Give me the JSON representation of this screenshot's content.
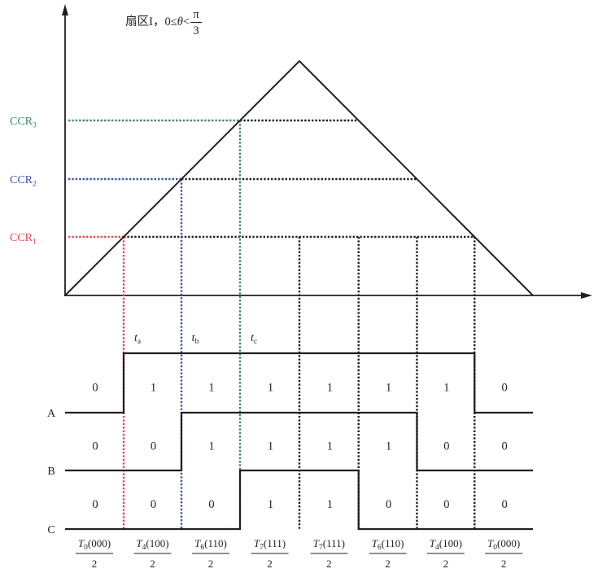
{
  "title": {
    "prefix": "扇区I，0≤",
    "var": "θ",
    "lt": "<",
    "frac_num": "π",
    "frac_den": "3"
  },
  "levels": [
    {
      "name": "CCR",
      "sub": "3",
      "color": "#3c8a63"
    },
    {
      "name": "CCR",
      "sub": "2",
      "color": "#3a56aa"
    },
    {
      "name": "CCR",
      "sub": "1",
      "color": "#e2484f"
    }
  ],
  "times": [
    {
      "var": "t",
      "sub": "a"
    },
    {
      "var": "t",
      "sub": "b"
    },
    {
      "var": "t",
      "sub": "c"
    }
  ],
  "signals": [
    {
      "label": "A",
      "states": [
        "0",
        "1",
        "1",
        "1",
        "1",
        "1",
        "1",
        "0"
      ]
    },
    {
      "label": "B",
      "states": [
        "0",
        "0",
        "1",
        "1",
        "1",
        "1",
        "0",
        "0"
      ]
    },
    {
      "label": "C",
      "states": [
        "0",
        "0",
        "0",
        "1",
        "1",
        "0",
        "0",
        "0"
      ]
    }
  ],
  "intervals": [
    {
      "var": "T",
      "sub": "0",
      "code": "(000)",
      "den": "2"
    },
    {
      "var": "T",
      "sub": "4",
      "code": "(100)",
      "den": "2"
    },
    {
      "var": "T",
      "sub": "6",
      "code": "(110)",
      "den": "2"
    },
    {
      "var": "T",
      "sub": "7",
      "code": "(111)",
      "den": "2"
    },
    {
      "var": "T",
      "sub": "7",
      "code": "(111)",
      "den": "2"
    },
    {
      "var": "T",
      "sub": "6",
      "code": "(110)",
      "den": "2"
    },
    {
      "var": "T",
      "sub": "4",
      "code": "(100)",
      "den": "2"
    },
    {
      "var": "T",
      "sub": "0",
      "code": "(000)",
      "den": "2"
    }
  ]
}
